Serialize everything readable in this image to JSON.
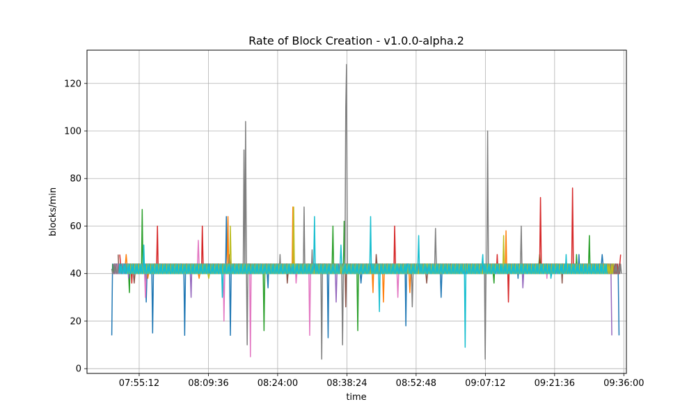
{
  "chart_data": {
    "type": "line",
    "title": "Rate of Block Creation  -  v1.0.0-alpha.2",
    "xlabel": "time",
    "ylabel": "blocks/min",
    "xlim": [
      "07:44:21",
      "09:36:32"
    ],
    "ylim": [
      -2,
      134
    ],
    "x_ticks": [
      "07:55:12",
      "08:09:36",
      "08:24:00",
      "08:38:24",
      "08:52:48",
      "09:07:12",
      "09:21:36",
      "09:36:00"
    ],
    "y_ticks": [
      0,
      20,
      40,
      60,
      80,
      100,
      120
    ],
    "grid": true,
    "baseline_band": [
      40,
      44
    ],
    "colors": [
      "#1f77b4",
      "#ff7f0e",
      "#2ca02c",
      "#d62728",
      "#9467bd",
      "#8c564b",
      "#e377c2",
      "#7f7f7f",
      "#bcbd22",
      "#17becf"
    ],
    "series": [
      {
        "values": [
          [
            "07:49:32",
            14
          ],
          [
            "07:50:10",
            44
          ],
          [
            "07:56:40",
            28
          ],
          [
            "07:58:00",
            15
          ],
          [
            "08:04:40",
            14
          ],
          [
            "08:13:20",
            64
          ],
          [
            "08:14:10",
            14
          ],
          [
            "08:22:00",
            34
          ],
          [
            "08:34:30",
            13
          ],
          [
            "08:41:20",
            36
          ],
          [
            "08:50:40",
            18
          ],
          [
            "08:58:00",
            30
          ],
          [
            "09:14:00",
            38
          ],
          [
            "09:26:40",
            48
          ],
          [
            "09:31:30",
            48
          ],
          [
            "09:35:00",
            14
          ]
        ]
      },
      {
        "values": [
          [
            "07:49:50",
            40
          ],
          [
            "07:52:30",
            48
          ],
          [
            "07:57:00",
            38
          ],
          [
            "08:07:40",
            38
          ],
          [
            "08:13:40",
            64
          ],
          [
            "08:27:10",
            68
          ],
          [
            "08:28:00",
            40
          ],
          [
            "08:39:00",
            44
          ],
          [
            "08:43:50",
            32
          ],
          [
            "08:46:00",
            28
          ],
          [
            "08:51:30",
            32
          ],
          [
            "09:01:00",
            40
          ],
          [
            "09:11:30",
            58
          ],
          [
            "09:18:00",
            44
          ],
          [
            "09:33:00",
            44
          ]
        ]
      },
      {
        "values": [
          [
            "07:49:40",
            44
          ],
          [
            "07:53:10",
            32
          ],
          [
            "07:55:45",
            67
          ],
          [
            "08:03:40",
            40
          ],
          [
            "08:21:10",
            16
          ],
          [
            "08:30:00",
            40
          ],
          [
            "08:35:30",
            60
          ],
          [
            "08:37:50",
            62
          ],
          [
            "08:40:40",
            16
          ],
          [
            "08:47:20",
            40
          ],
          [
            "09:00:40",
            40
          ],
          [
            "09:09:00",
            36
          ],
          [
            "09:18:30",
            48
          ],
          [
            "09:26:10",
            48
          ],
          [
            "09:28:50",
            56
          ],
          [
            "09:34:30",
            40
          ]
        ]
      },
      {
        "values": [
          [
            "07:51:10",
            48
          ],
          [
            "07:53:40",
            36
          ],
          [
            "07:59:00",
            60
          ],
          [
            "08:01:30",
            40
          ],
          [
            "08:08:20",
            60
          ],
          [
            "08:23:30",
            40
          ],
          [
            "08:32:50",
            44
          ],
          [
            "08:42:20",
            40
          ],
          [
            "08:48:20",
            60
          ],
          [
            "08:56:20",
            44
          ],
          [
            "09:03:10",
            40
          ],
          [
            "09:09:40",
            48
          ],
          [
            "09:12:00",
            28
          ],
          [
            "09:18:40",
            72
          ],
          [
            "09:25:20",
            76
          ],
          [
            "09:27:40",
            40
          ],
          [
            "09:35:20",
            48
          ]
        ]
      },
      {
        "values": [
          [
            "07:49:45",
            44
          ],
          [
            "07:53:00",
            38
          ],
          [
            "08:06:00",
            30
          ],
          [
            "08:10:30",
            40
          ],
          [
            "08:18:00",
            44
          ],
          [
            "08:36:10",
            28
          ],
          [
            "08:39:30",
            44
          ],
          [
            "08:49:40",
            40
          ],
          [
            "09:06:00",
            44
          ],
          [
            "09:15:00",
            34
          ],
          [
            "09:22:20",
            40
          ],
          [
            "09:31:00",
            44
          ],
          [
            "09:33:30",
            14
          ]
        ]
      },
      {
        "values": [
          [
            "07:50:50",
            48
          ],
          [
            "07:54:10",
            36
          ],
          [
            "07:58:40",
            44
          ],
          [
            "08:05:50",
            44
          ],
          [
            "08:14:00",
            48
          ],
          [
            "08:20:20",
            40
          ],
          [
            "08:26:00",
            36
          ],
          [
            "08:33:40",
            44
          ],
          [
            "08:38:10",
            26
          ],
          [
            "08:44:30",
            48
          ],
          [
            "08:55:00",
            36
          ],
          [
            "09:02:30",
            44
          ],
          [
            "09:08:10",
            40
          ],
          [
            "09:16:20",
            44
          ],
          [
            "09:23:10",
            36
          ],
          [
            "09:30:20",
            44
          ]
        ]
      },
      {
        "values": [
          [
            "07:50:00",
            44
          ],
          [
            "07:56:30",
            30
          ],
          [
            "08:07:30",
            54
          ],
          [
            "08:12:50",
            20
          ],
          [
            "08:18:20",
            5
          ],
          [
            "08:22:40",
            40
          ],
          [
            "08:27:50",
            36
          ],
          [
            "08:30:40",
            14
          ],
          [
            "08:41:10",
            44
          ],
          [
            "08:49:00",
            30
          ],
          [
            "08:59:10",
            40
          ],
          [
            "09:10:20",
            44
          ],
          [
            "09:20:00",
            38
          ],
          [
            "09:29:40",
            40
          ]
        ]
      },
      {
        "values": [
          [
            "07:49:30",
            42
          ],
          [
            "07:56:00",
            40
          ],
          [
            "08:03:50",
            44
          ],
          [
            "08:11:00",
            40
          ],
          [
            "08:17:00",
            92
          ],
          [
            "08:17:20",
            104
          ],
          [
            "08:17:40",
            10
          ],
          [
            "08:18:20",
            40
          ],
          [
            "08:24:30",
            48
          ],
          [
            "08:28:30",
            40
          ],
          [
            "08:29:30",
            68
          ],
          [
            "08:31:10",
            50
          ],
          [
            "08:33:10",
            4
          ],
          [
            "08:35:10",
            40
          ],
          [
            "08:37:30",
            10
          ],
          [
            "08:38:10",
            110
          ],
          [
            "08:38:20",
            128
          ],
          [
            "08:38:40",
            40
          ],
          [
            "08:40:00",
            44
          ],
          [
            "08:45:40",
            40
          ],
          [
            "08:52:00",
            26
          ],
          [
            "08:56:50",
            59
          ],
          [
            "09:00:00",
            40
          ],
          [
            "09:05:20",
            44
          ],
          [
            "09:07:10",
            4
          ],
          [
            "09:07:40",
            100
          ],
          [
            "09:08:30",
            40
          ],
          [
            "09:14:40",
            60
          ],
          [
            "09:20:00",
            44
          ],
          [
            "09:28:00",
            44
          ],
          [
            "09:35:30",
            40
          ]
        ]
      },
      {
        "values": [
          [
            "07:52:40",
            44
          ],
          [
            "08:09:40",
            38
          ],
          [
            "08:14:10",
            60
          ],
          [
            "08:26:40",
            44
          ],
          [
            "08:27:20",
            68
          ],
          [
            "08:36:50",
            40
          ],
          [
            "08:49:10",
            44
          ],
          [
            "08:55:00",
            44
          ],
          [
            "09:09:30",
            44
          ],
          [
            "09:11:00",
            56
          ],
          [
            "09:22:00",
            44
          ],
          [
            "09:34:00",
            44
          ]
        ]
      },
      {
        "values": [
          [
            "07:51:00",
            40
          ],
          [
            "07:56:10",
            52
          ],
          [
            "08:05:00",
            40
          ],
          [
            "08:12:30",
            30
          ],
          [
            "08:25:30",
            40
          ],
          [
            "08:31:40",
            64
          ],
          [
            "08:37:10",
            52
          ],
          [
            "08:43:20",
            64
          ],
          [
            "08:45:10",
            24
          ],
          [
            "08:51:00",
            44
          ],
          [
            "08:53:20",
            56
          ],
          [
            "09:03:00",
            9
          ],
          [
            "09:06:40",
            48
          ],
          [
            "09:13:20",
            40
          ],
          [
            "09:20:50",
            38
          ],
          [
            "09:24:00",
            48
          ],
          [
            "09:32:40",
            40
          ]
        ]
      }
    ]
  }
}
